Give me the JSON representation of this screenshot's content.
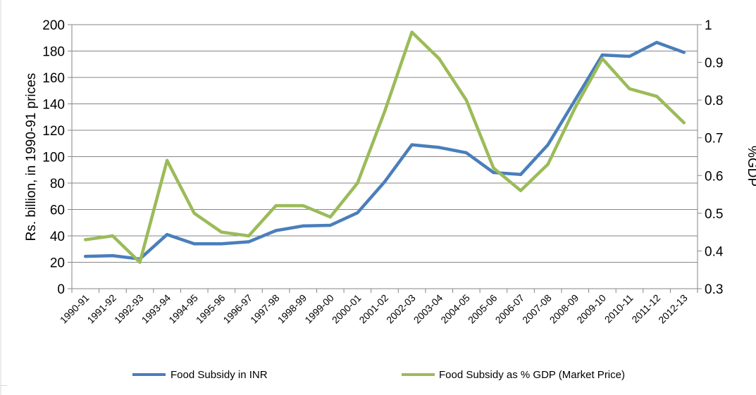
{
  "chart_data": {
    "type": "line",
    "categories": [
      "1990-91",
      "1991-92",
      "1992-93",
      "1993-94",
      "1994-95",
      "1995-96",
      "1996-97",
      "1997-98",
      "1998-99",
      "1999-00",
      "2000-01",
      "2001-02",
      "2002-03",
      "2003-04",
      "2004-05",
      "2005-06",
      "2006-07",
      "2007-08",
      "2008-09",
      "2009-10",
      "2010-11",
      "2011-12",
      "2012-13"
    ],
    "series": [
      {
        "name": "Food Subsidy in INR",
        "axis": "left",
        "color": "#4a7ebb",
        "values": [
          24.5,
          25,
          22.5,
          41,
          34,
          34,
          35.5,
          44,
          47.5,
          48,
          57.5,
          81,
          109,
          107,
          103,
          88,
          86.5,
          109,
          143,
          177,
          176,
          186.5,
          179
        ]
      },
      {
        "name": "Food Subsidy as % GDP (Market Price)",
        "axis": "right",
        "color": "#9bbb59",
        "values": [
          0.43,
          0.44,
          0.37,
          0.64,
          0.5,
          0.45,
          0.44,
          0.52,
          0.52,
          0.49,
          0.58,
          0.77,
          0.98,
          0.91,
          0.8,
          0.62,
          0.56,
          0.63,
          0.78,
          0.91,
          0.83,
          0.81,
          0.74
        ]
      }
    ],
    "ylabel": "Rs. billion, in 1990-91 prices",
    "y2label": "%GDP",
    "ylim": [
      0,
      200
    ],
    "y2lim": [
      0.3,
      1
    ],
    "yticks": [
      "0",
      "20",
      "40",
      "60",
      "80",
      "100",
      "120",
      "140",
      "160",
      "180",
      "200"
    ],
    "y2ticks": [
      "0.3",
      "0.4",
      "0.5",
      "0.6",
      "0.7",
      "0.8",
      "0.9",
      "1"
    ],
    "grid": true,
    "legend_position": "bottom"
  }
}
